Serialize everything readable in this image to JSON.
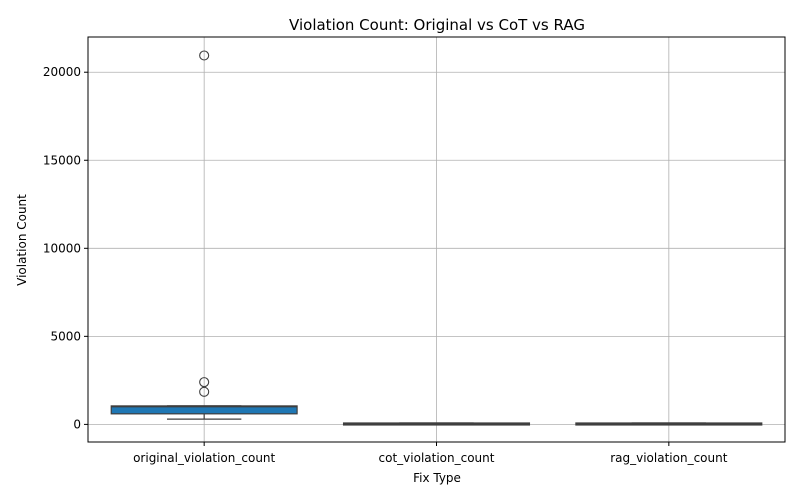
{
  "chart_data": {
    "type": "box",
    "title": "Violation Count: Original vs CoT vs RAG",
    "xlabel": "Fix Type",
    "ylabel": "Violation Count",
    "ylim": [
      -1000,
      22000
    ],
    "yticks": [
      0,
      5000,
      10000,
      15000,
      20000
    ],
    "grid": true,
    "box_color": "#1f77b4",
    "categories": [
      "original_violation_count",
      "cot_violation_count",
      "rag_violation_count"
    ],
    "boxes": [
      {
        "category": "original_violation_count",
        "whisker_low": 300,
        "q1": 600,
        "median": 1000,
        "q3": 1050,
        "whisker_high": 1050,
        "outliers": [
          1850,
          2400,
          20950
        ]
      },
      {
        "category": "cot_violation_count",
        "whisker_low": 0,
        "q1": 0,
        "median": 20,
        "q3": 80,
        "whisker_high": 80,
        "outliers": []
      },
      {
        "category": "rag_violation_count",
        "whisker_low": 0,
        "q1": 0,
        "median": 20,
        "q3": 80,
        "whisker_high": 80,
        "outliers": []
      }
    ]
  }
}
